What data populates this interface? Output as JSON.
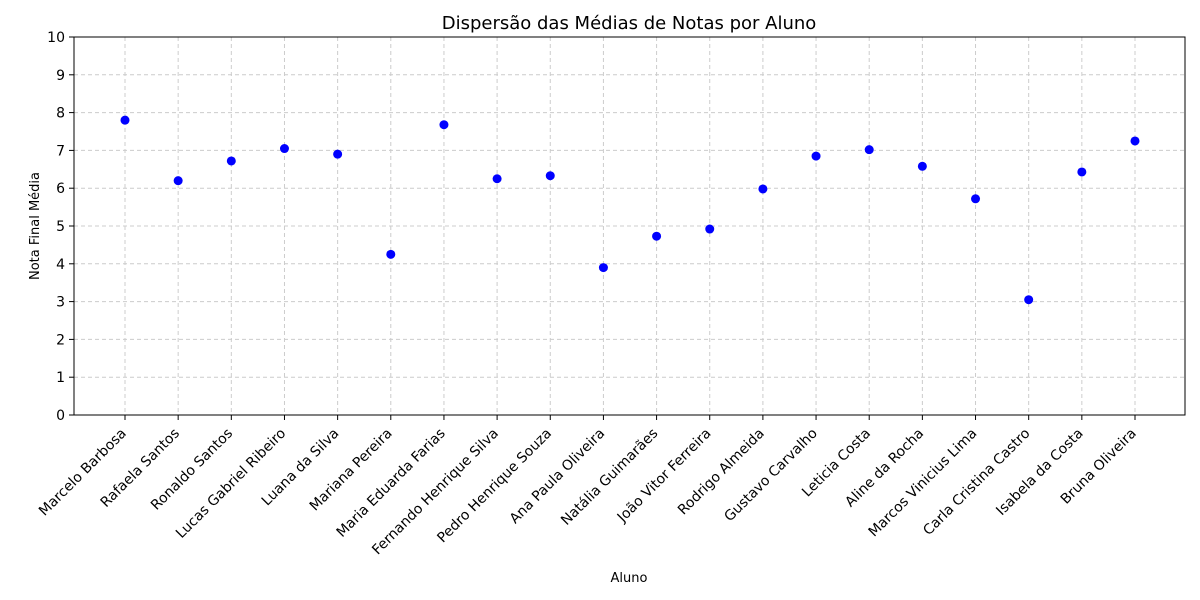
{
  "chart_data": {
    "type": "scatter",
    "title": "Dispersão das Médias de Notas por Aluno",
    "xlabel": "Aluno",
    "ylabel": "Nota Final Média",
    "ylim": [
      0,
      10
    ],
    "yticks": [
      0,
      1,
      2,
      3,
      4,
      5,
      6,
      7,
      8,
      9,
      10
    ],
    "grid": true,
    "grid_style": "dashed",
    "point_color": "#0000ff",
    "categories": [
      "Marcelo Barbosa",
      "Rafaela Santos",
      "Ronaldo Santos",
      "Lucas Gabriel Ribeiro",
      "Luana da Silva",
      "Mariana Pereira",
      "Maria Eduarda Farias",
      "Fernando Henrique Silva",
      "Pedro Henrique Souza",
      "Ana Paula Oliveira",
      "Natália Guimarães",
      "João Vitor Ferreira",
      "Rodrigo Almeida",
      "Gustavo Carvalho",
      "Leticia Costa",
      "Aline da Rocha",
      "Marcos Vinicius Lima",
      "Carla Cristina Castro",
      "Isabela da Costa",
      "Bruna Oliveira"
    ],
    "values": [
      7.8,
      6.2,
      6.72,
      7.05,
      6.9,
      4.25,
      7.68,
      6.25,
      6.33,
      3.9,
      4.73,
      4.92,
      5.98,
      6.85,
      7.02,
      6.58,
      5.72,
      3.05,
      6.43,
      7.25
    ]
  }
}
